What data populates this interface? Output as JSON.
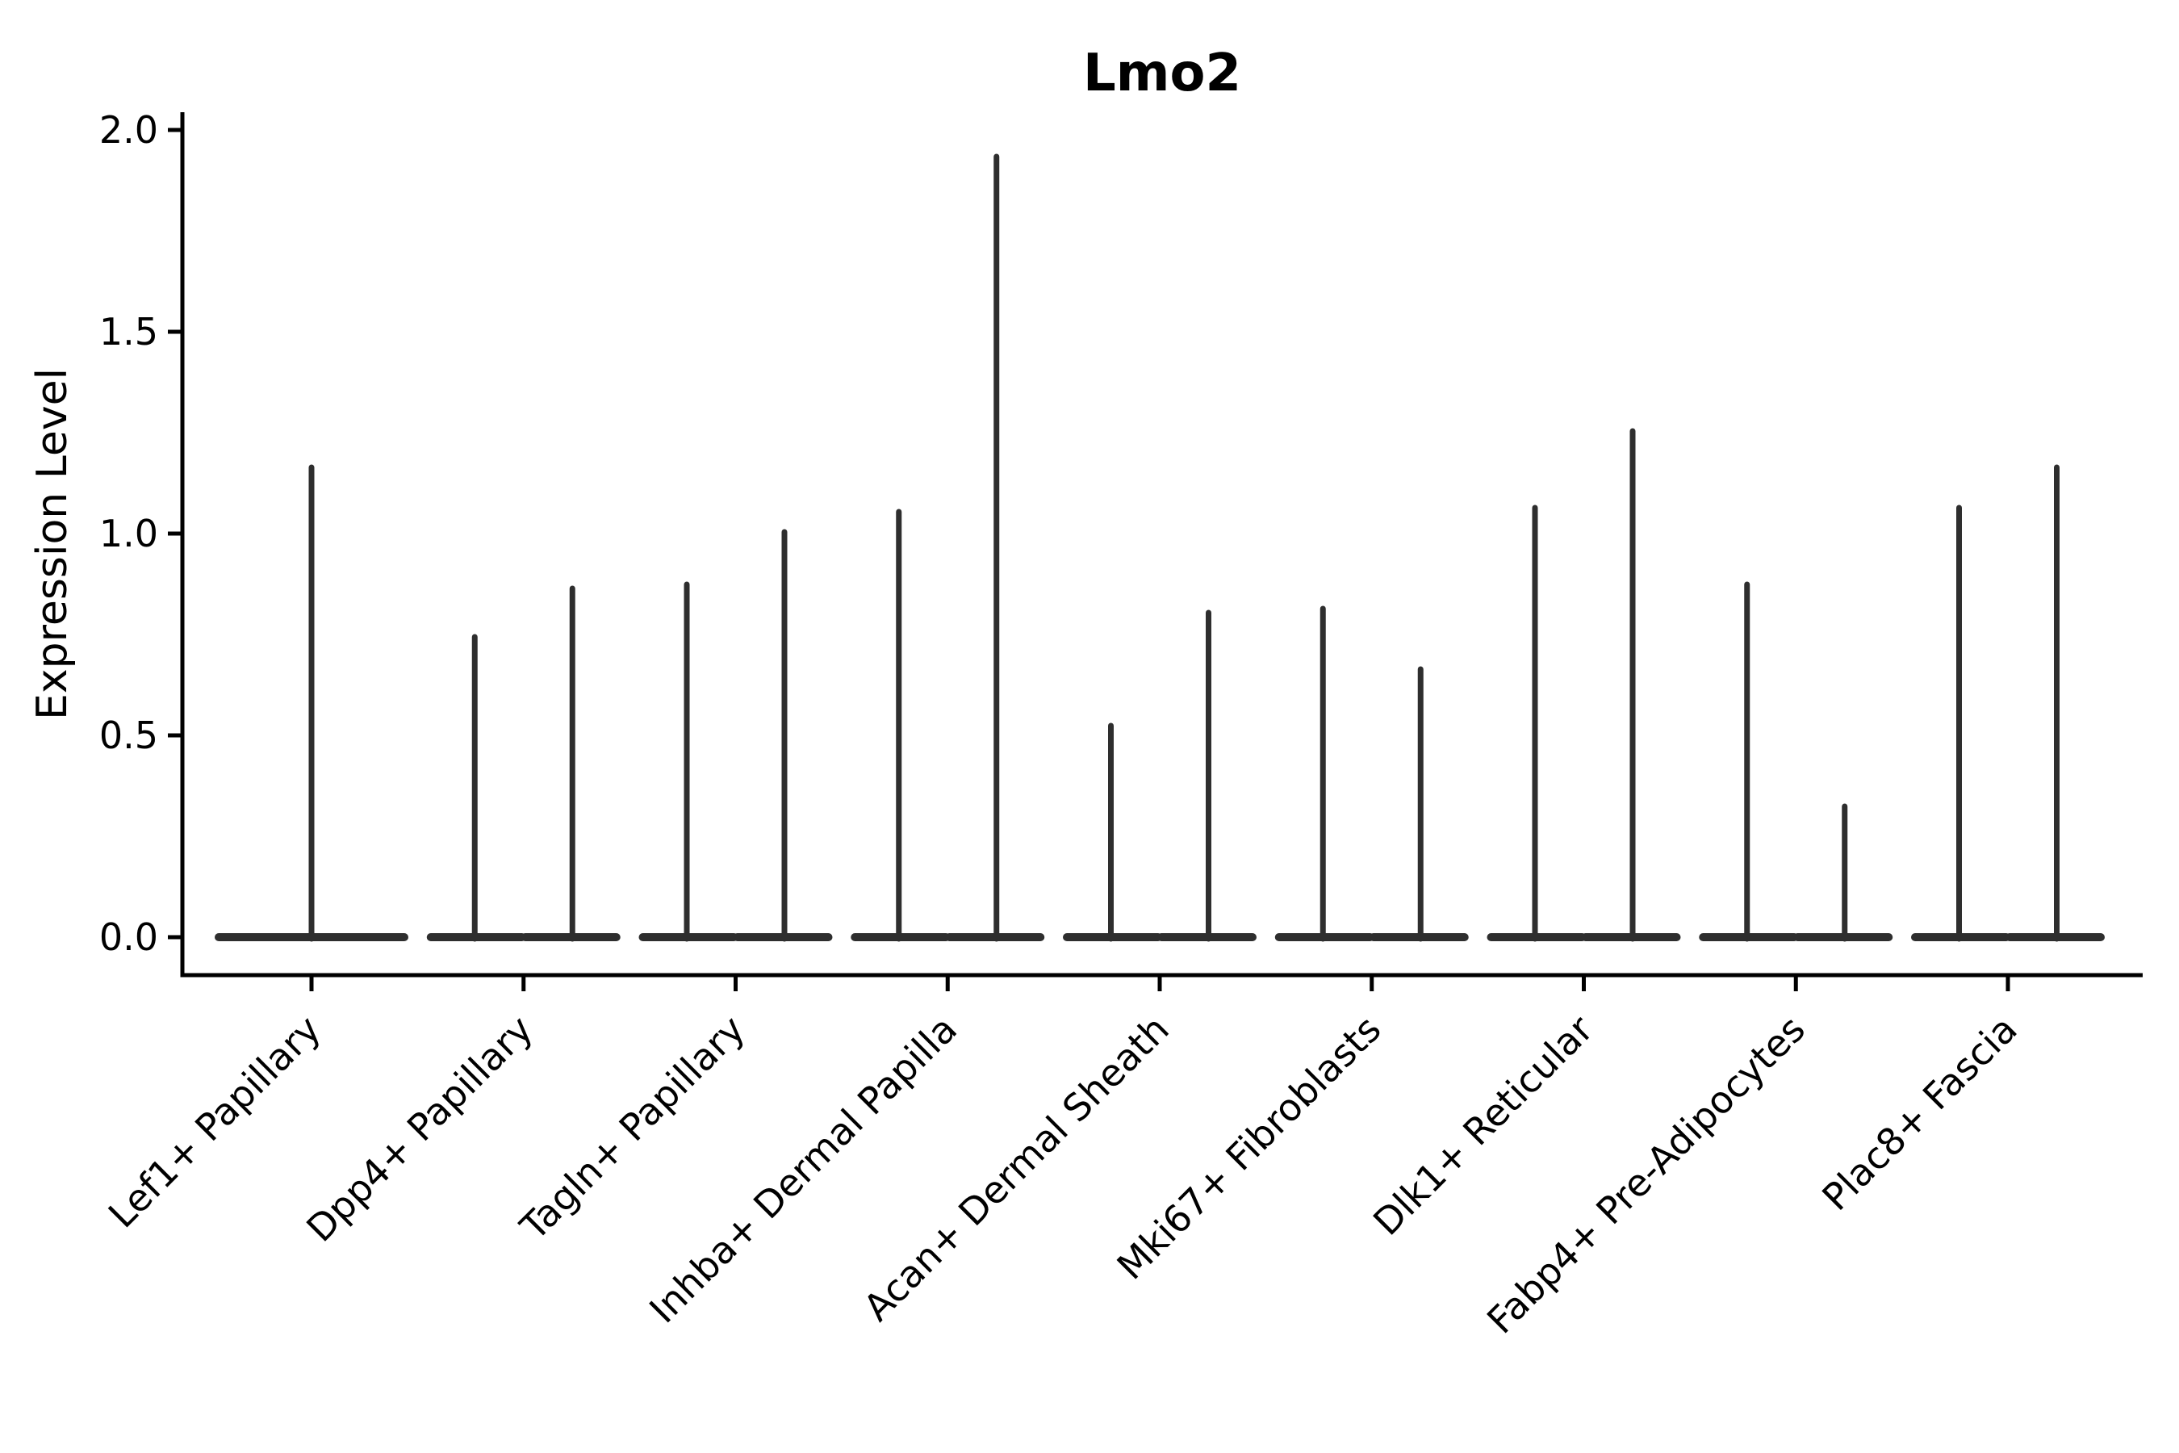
{
  "chart_data": {
    "type": "violin",
    "title": "Lmo2",
    "xlabel": "",
    "ylabel": "Expression Level",
    "ylim": [
      0,
      2
    ],
    "yticks": [
      0.0,
      0.5,
      1.0,
      1.5,
      2.0
    ],
    "ytick_labels": [
      "0.0",
      "0.5",
      "1.0",
      "1.5",
      "2.0"
    ],
    "grid": false,
    "legend": "none",
    "note": "Each violin collapses to a wide flat base at expression 0 with a thin density spike rising to its maximum; first category has one full-width violin, all others have two half-width violins.",
    "categories": [
      "Lef1+ Papillary",
      "Dpp4+ Papillary",
      "Tagln+ Papillary",
      "Inhba+ Dermal Papilla",
      "Acan+ Dermal Sheath",
      "Mki67+ Fibroblasts",
      "Dlk1+ Reticular",
      "Fabp4+ Pre-Adipocytes",
      "Plac8+ Fascia"
    ],
    "violins": [
      {
        "category": "Lef1+ Papillary",
        "peaks": [
          1.17
        ]
      },
      {
        "category": "Dpp4+ Papillary",
        "peaks": [
          0.75,
          0.87
        ]
      },
      {
        "category": "Tagln+ Papillary",
        "peaks": [
          0.88,
          1.01
        ]
      },
      {
        "category": "Inhba+ Dermal Papilla",
        "peaks": [
          1.06,
          1.94
        ]
      },
      {
        "category": "Acan+ Dermal Sheath",
        "peaks": [
          0.53,
          0.81
        ]
      },
      {
        "category": "Mki67+ Fibroblasts",
        "peaks": [
          0.82,
          0.67
        ]
      },
      {
        "category": "Dlk1+ Reticular",
        "peaks": [
          1.07,
          1.26
        ]
      },
      {
        "category": "Fabp4+ Pre-Adipocytes",
        "peaks": [
          0.88,
          0.33
        ]
      },
      {
        "category": "Plac8+ Fascia",
        "peaks": [
          1.07,
          1.17
        ]
      }
    ]
  },
  "colors": {
    "violin_stroke": "#2e2e2e",
    "axis": "#000000",
    "background": "#ffffff"
  }
}
